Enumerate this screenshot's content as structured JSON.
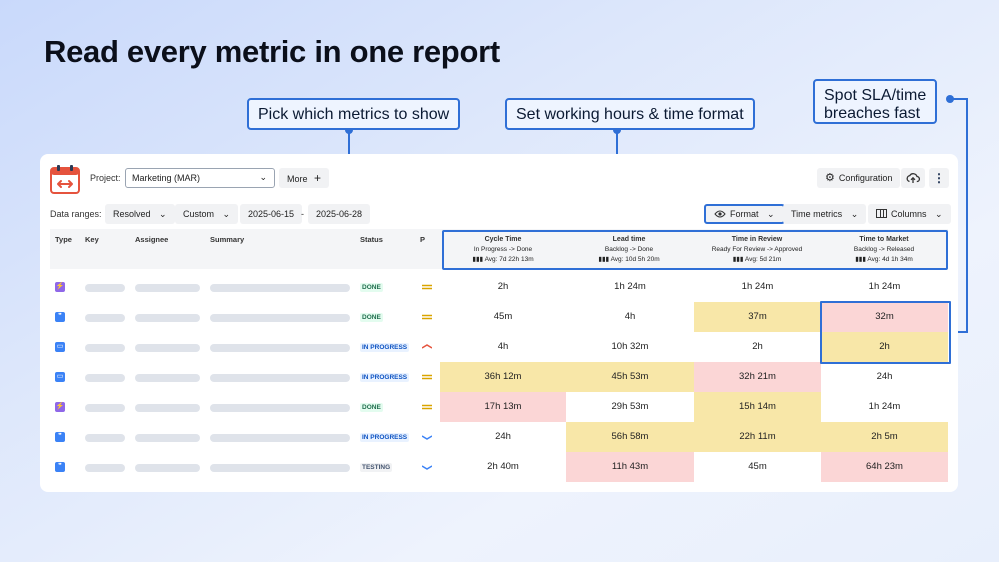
{
  "headline": "Read every metric in one report",
  "callouts": {
    "metrics": "Pick which metrics to show",
    "hours": "Set working hours & time format",
    "sla_line1": "Spot SLA/time",
    "sla_line2": "breaches fast"
  },
  "toolbar": {
    "project_label": "Project:",
    "project_value": "Marketing (MAR)",
    "more_label": "More",
    "configuration_label": "Configuration",
    "data_ranges_label": "Data ranges:",
    "resolved_label": "Resolved",
    "custom_label": "Custom",
    "date_from": "2025-06-15",
    "date_sep": "-",
    "date_to": "2025-06-28",
    "format_label": "Format",
    "time_metrics_label": "Time metrics",
    "columns_label": "Columns"
  },
  "table": {
    "headers": {
      "type": "Type",
      "key": "Key",
      "assignee": "Assignee",
      "summary": "Summary",
      "status": "Status",
      "priority": "P"
    },
    "metrics": [
      {
        "name": "Cycle Time",
        "sub": "In Progress -> Done",
        "avg": "Avg: 7d 22h 13m"
      },
      {
        "name": "Lead time",
        "sub": "Backlog -> Done",
        "avg": "Avg: 10d 5h 20m"
      },
      {
        "name": "Time in Review",
        "sub": "Ready For Review -> Approved",
        "avg": "Avg: 5d 21m"
      },
      {
        "name": "Time to Market",
        "sub": "Backlog -> Released",
        "avg": "Avg: 4d 1h 34m"
      }
    ],
    "rows": [
      {
        "type": "epic",
        "status": "DONE",
        "priority": "medium",
        "values": [
          "2h",
          "1h 24m",
          "1h 24m",
          "1h 24m"
        ],
        "flags": [
          "none",
          "none",
          "none",
          "none"
        ]
      },
      {
        "type": "story",
        "status": "DONE",
        "priority": "medium",
        "values": [
          "45m",
          "4h",
          "37m",
          "32m"
        ],
        "flags": [
          "none",
          "none",
          "warn",
          "breach"
        ]
      },
      {
        "type": "task",
        "status": "IN PROGRESS",
        "priority": "high",
        "values": [
          "4h",
          "10h 32m",
          "2h",
          "2h"
        ],
        "flags": [
          "none",
          "none",
          "none",
          "warn"
        ]
      },
      {
        "type": "task",
        "status": "IN PROGRESS",
        "priority": "medium",
        "values": [
          "36h 12m",
          "45h 53m",
          "32h 21m",
          "24h"
        ],
        "flags": [
          "warn",
          "warn",
          "breach",
          "none"
        ]
      },
      {
        "type": "epic",
        "status": "DONE",
        "priority": "medium",
        "values": [
          "17h 13m",
          "29h 53m",
          "15h 14m",
          "1h 24m"
        ],
        "flags": [
          "breach",
          "none",
          "warn",
          "none"
        ]
      },
      {
        "type": "story",
        "status": "IN PROGRESS",
        "priority": "low",
        "values": [
          "24h",
          "56h 58m",
          "22h 11m",
          "2h 5m"
        ],
        "flags": [
          "none",
          "warn",
          "warn",
          "warn"
        ]
      },
      {
        "type": "story",
        "status": "TESTING",
        "priority": "low",
        "values": [
          "2h 40m",
          "11h 43m",
          "45m",
          "64h 23m"
        ],
        "flags": [
          "none",
          "breach",
          "none",
          "breach"
        ]
      }
    ]
  },
  "colors": {
    "accent": "#2f6fd6",
    "warn": "#f8e7a8",
    "breach": "#fbd6d6",
    "done_bg": "#e3fcef",
    "done_fg": "#216e4e",
    "progress_bg": "#e9f2ff",
    "progress_fg": "#0c52c2",
    "testing_bg": "#f1f2f4",
    "testing_fg": "#44546f",
    "epic": "#8f67e8",
    "story": "#3b82f6",
    "task": "#3b82f6",
    "medium": "#d9a400",
    "high": "#e5533d",
    "low": "#3b82f6"
  },
  "icons": {
    "logo": "calendar-arrows-icon",
    "more": "plus-icon",
    "configuration": "gear-icon",
    "export": "cloud-upload-icon",
    "menu": "kebab-icon",
    "format": "eye-icon",
    "columns": "columns-icon",
    "avg": "bar-chart-icon"
  }
}
